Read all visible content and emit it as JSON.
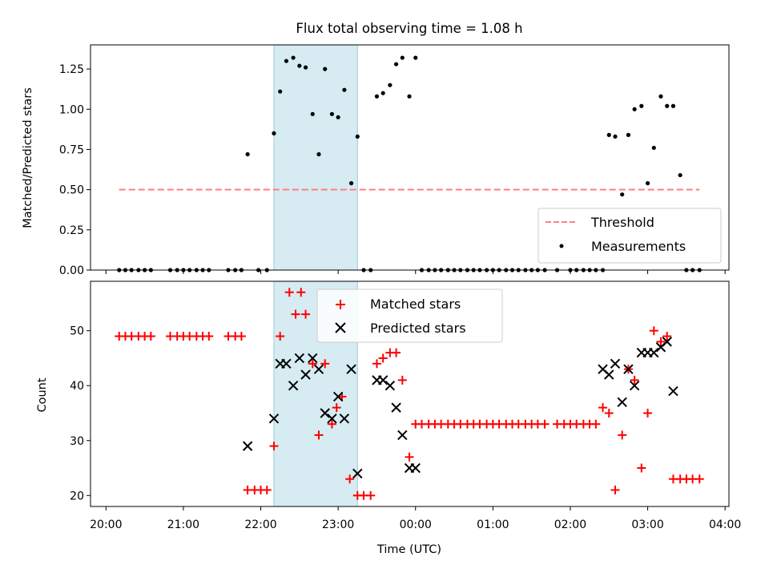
{
  "chart_data": [
    {
      "type": "scatter",
      "title": "Flux total observing time = 1.08 h",
      "xlabel": "",
      "ylabel": "Matched/Predicted stars",
      "ylim": [
        0,
        1.4
      ],
      "yticks": [
        "0.00",
        "0.25",
        "0.50",
        "0.75",
        "1.00",
        "1.25"
      ],
      "grid": false,
      "legend_position": "lower-right",
      "highlight_span": {
        "x_start": 22.17,
        "x_end": 23.25,
        "color": "#add8e6"
      },
      "series": [
        {
          "name": "Threshold",
          "style": "dashed-line",
          "color": "#ff7f7f",
          "x": [
            20.17,
            23.0,
            26.2,
            27.67
          ],
          "y": [
            0.5,
            0.5,
            0.5,
            0.5
          ]
        },
        {
          "name": "Measurements",
          "style": "dot",
          "color": "#000000",
          "x": [
            20.17,
            20.25,
            20.33,
            20.42,
            20.5,
            20.58,
            20.83,
            20.92,
            21.0,
            21.08,
            21.17,
            21.25,
            21.33,
            21.58,
            21.67,
            21.75,
            21.83,
            21.97,
            22.08,
            22.17,
            22.25,
            22.33,
            22.42,
            22.5,
            22.58,
            22.67,
            22.75,
            22.83,
            22.92,
            23.0,
            23.08,
            23.17,
            23.25,
            23.33,
            23.42,
            23.5,
            23.58,
            23.67,
            23.75,
            23.83,
            23.92,
            24.0,
            24.08,
            24.17,
            24.25,
            24.33,
            24.42,
            24.5,
            24.58,
            24.67,
            24.75,
            24.83,
            24.92,
            25.0,
            25.08,
            25.17,
            25.25,
            25.33,
            25.42,
            25.5,
            25.58,
            25.67,
            25.83,
            26.0,
            26.08,
            26.17,
            26.25,
            26.33,
            26.42,
            26.5,
            26.58,
            26.67,
            26.75,
            26.83,
            26.92,
            27.0,
            27.08,
            27.17,
            27.25,
            27.33,
            27.42,
            27.5,
            27.58,
            27.67
          ],
          "y": [
            0,
            0,
            0,
            0,
            0,
            0,
            0,
            0,
            0,
            0,
            0,
            0,
            0,
            0,
            0,
            0,
            0.72,
            0,
            0,
            0.85,
            1.11,
            1.3,
            1.32,
            1.27,
            1.26,
            0.97,
            0.72,
            1.25,
            0.97,
            0.95,
            1.12,
            0.54,
            0.83,
            0,
            0,
            1.08,
            1.1,
            1.15,
            1.28,
            1.32,
            1.08,
            1.32,
            0,
            0,
            0,
            0,
            0,
            0,
            0,
            0,
            0,
            0,
            0,
            0,
            0,
            0,
            0,
            0,
            0,
            0,
            0,
            0,
            0,
            0,
            0,
            0,
            0,
            0,
            0,
            0.84,
            0.83,
            0.47,
            0.84,
            1.0,
            1.02,
            0.54,
            0.76,
            1.08,
            1.02,
            1.02,
            0.59,
            0,
            0,
            0
          ]
        }
      ]
    },
    {
      "type": "scatter",
      "title": "",
      "xlabel": "Time (UTC)",
      "ylabel": "Count",
      "ylim": [
        18,
        59
      ],
      "yticks": [
        "20",
        "30",
        "40",
        "50"
      ],
      "xlim": [
        19.8,
        28.05
      ],
      "xticks": [
        "20:00",
        "21:00",
        "22:00",
        "23:00",
        "00:00",
        "01:00",
        "02:00",
        "03:00",
        "04:00"
      ],
      "grid": false,
      "legend_position": "upper-center",
      "highlight_span": {
        "x_start": 22.17,
        "x_end": 23.25,
        "color": "#add8e6"
      },
      "series": [
        {
          "name": "Matched stars",
          "style": "plus",
          "color": "#ff0000",
          "x": [
            20.17,
            20.25,
            20.33,
            20.42,
            20.5,
            20.58,
            20.83,
            20.92,
            21.0,
            21.08,
            21.17,
            21.25,
            21.33,
            21.58,
            21.67,
            21.75,
            21.83,
            21.92,
            22.0,
            22.08,
            22.17,
            22.25,
            22.37,
            22.45,
            22.52,
            22.58,
            22.67,
            22.75,
            22.83,
            22.92,
            22.98,
            23.05,
            23.15,
            23.25,
            23.33,
            23.42,
            23.5,
            23.58,
            23.67,
            23.75,
            23.83,
            23.92,
            24.0,
            24.08,
            24.17,
            24.25,
            24.33,
            24.42,
            24.5,
            24.58,
            24.67,
            24.75,
            24.83,
            24.92,
            25.0,
            25.08,
            25.17,
            25.25,
            25.33,
            25.42,
            25.5,
            25.58,
            25.67,
            25.83,
            25.92,
            26.0,
            26.08,
            26.17,
            26.25,
            26.33,
            26.42,
            26.5,
            26.58,
            26.67,
            26.75,
            26.83,
            26.92,
            27.0,
            27.08,
            27.17,
            27.25,
            27.33,
            27.42,
            27.5,
            27.58,
            27.67
          ],
          "y": [
            49,
            49,
            49,
            49,
            49,
            49,
            49,
            49,
            49,
            49,
            49,
            49,
            49,
            49,
            49,
            49,
            21,
            21,
            21,
            21,
            29,
            49,
            57,
            53,
            57,
            53,
            44,
            31,
            44,
            33,
            36,
            38,
            23,
            20,
            20,
            20,
            44,
            45,
            46,
            46,
            41,
            27,
            33,
            33,
            33,
            33,
            33,
            33,
            33,
            33,
            33,
            33,
            33,
            33,
            33,
            33,
            33,
            33,
            33,
            33,
            33,
            33,
            33,
            33,
            33,
            33,
            33,
            33,
            33,
            33,
            36,
            35,
            21,
            31,
            43,
            41,
            25,
            35,
            50,
            48,
            49,
            23,
            23,
            23,
            23,
            23
          ]
        },
        {
          "name": "Predicted stars",
          "style": "x",
          "color": "#000000",
          "x": [
            21.83,
            22.17,
            22.25,
            22.33,
            22.42,
            22.5,
            22.58,
            22.67,
            22.75,
            22.83,
            22.92,
            23.0,
            23.08,
            23.17,
            23.25,
            23.5,
            23.58,
            23.67,
            23.75,
            23.83,
            23.92,
            24.0,
            26.42,
            26.5,
            26.58,
            26.67,
            26.75,
            26.83,
            26.92,
            27.0,
            27.08,
            27.17,
            27.25,
            27.33
          ],
          "y": [
            29,
            34,
            44,
            44,
            40,
            45,
            42,
            45,
            43,
            35,
            34,
            38,
            34,
            43,
            24,
            41,
            41,
            40,
            36,
            31,
            25,
            25,
            43,
            42,
            44,
            37,
            43,
            40,
            46,
            46,
            46,
            47,
            48,
            39
          ]
        }
      ]
    }
  ]
}
